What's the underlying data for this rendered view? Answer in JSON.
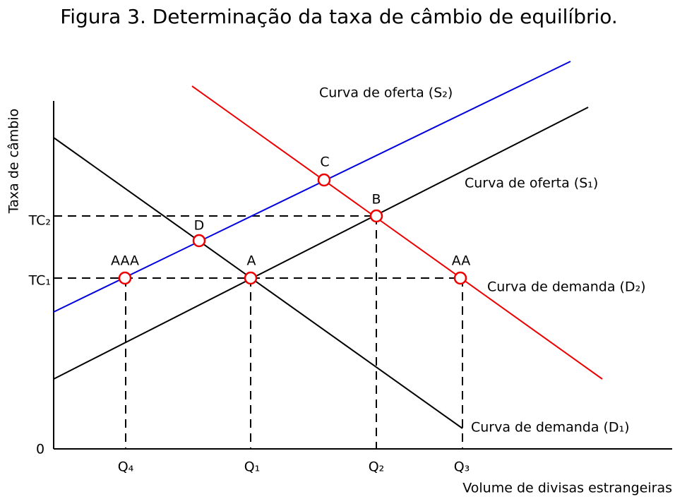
{
  "title": "Figura 3. Determinação da taxa de câmbio de equilíbrio.",
  "axes": {
    "x_label": "Volume de divisas estrangeiras",
    "y_label": "Taxa de câmbio",
    "origin": "0"
  },
  "y_ticks": [
    "TC₂",
    "TC₁"
  ],
  "x_ticks": [
    "Q₄",
    "Q₁",
    "Q₂",
    "Q₃"
  ],
  "curves": [
    "Curva de oferta (S₂)",
    "Curva de oferta (S₁)",
    "Curva de demanda (D₂)",
    "Curva de demanda (D₁)"
  ],
  "points": [
    "C",
    "B",
    "D",
    "A",
    "AAA",
    "AA"
  ]
}
